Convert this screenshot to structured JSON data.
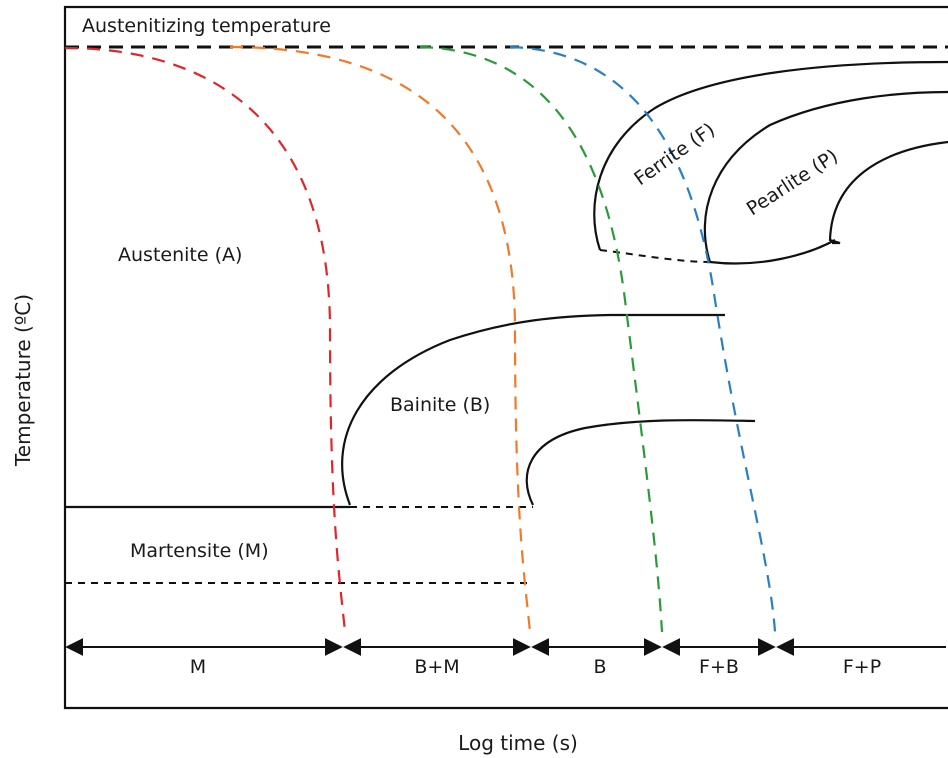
{
  "diagram": {
    "axis_y_label": "Temperature (ºC)",
    "axis_x_label": "Log time (s)",
    "austenitizing_label": "Austenitizing temperature",
    "regions": {
      "austenite": "Austenite (A)",
      "bainite": "Bainite (B)",
      "martensite": "Martensite (M)",
      "ferrite": "Ferrite (F)",
      "pearlite": "Pearlite (P)"
    },
    "outcome_ranges": [
      "M",
      "B+M",
      "B",
      "F+B",
      "F+P"
    ],
    "colors": {
      "curve_1": "#e0262a",
      "curve_2": "#f07a2a",
      "curve_3": "#2a9a3a",
      "curve_4": "#2a7fc4",
      "lines": "#111111"
    }
  }
}
